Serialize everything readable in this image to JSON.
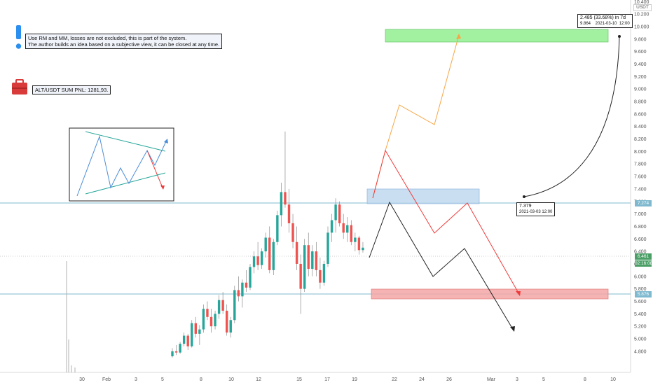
{
  "info_note": {
    "line1": "Use RM and MM, losses are not excluded, this is part of the system.",
    "line2": "The author builds an idea based on a subjective view, it can be closed at any time."
  },
  "pnl_note": "ALT/USDT SUM PNL: 1281,93.",
  "icons": {
    "info": "exclamation-icon",
    "briefcase": "briefcase-icon"
  },
  "colors": {
    "up": "#26a69a",
    "down": "#ef5350",
    "target_zone": "#90ee90",
    "entry_zone": "#bcd6ee",
    "stop_zone": "#f4a6a6",
    "bull_path": "#f7a545",
    "bear_path": "#ef3b3b",
    "neutral_path": "#222222",
    "hline": "#7fb9cf"
  },
  "price_axis": {
    "currency": "USDT",
    "ticks": [
      "10.400",
      "10.200",
      "10.000",
      "9.800",
      "9.600",
      "9.400",
      "9.200",
      "9.000",
      "8.800",
      "8.600",
      "8.400",
      "8.200",
      "8.000",
      "7.800",
      "7.600",
      "7.400",
      "7.200",
      "7.000",
      "6.800",
      "6.600",
      "6.400",
      "6.200",
      "6.000",
      "5.800",
      "5.600",
      "5.400",
      "5.200",
      "5.000",
      "4.800"
    ],
    "tag_level_high": "7.274",
    "tag_last_price": "6.461",
    "tag_countdown": "02:16:08",
    "tag_level_low": "5.876"
  },
  "time_axis": {
    "labels": [
      "30",
      "Feb",
      "3",
      "5",
      "8",
      "10",
      "12",
      "15",
      "17",
      "19",
      "22",
      "24",
      "26",
      "Mar",
      "3",
      "5",
      "8",
      "10"
    ]
  },
  "measure_callout": {
    "line1": "2.485 (33.68%) in 7d",
    "line2": "9.864    2021-03-10  12:00"
  },
  "start_callout": {
    "line1": "7.379",
    "line2": "2021-03-03 12:00"
  },
  "chart_data": {
    "type": "candlestick",
    "symbol": "ALT/USDT",
    "ylim": [
      4.7,
      10.45
    ],
    "levels": [
      7.274,
      6.461,
      5.876
    ],
    "candles_ohlc": [
      [
        4.72,
        4.85,
        4.7,
        4.8
      ],
      [
        4.8,
        4.9,
        4.74,
        4.78
      ],
      [
        4.78,
        4.95,
        4.76,
        4.92
      ],
      [
        4.92,
        5.1,
        4.88,
        5.05
      ],
      [
        5.05,
        5.08,
        4.82,
        4.88
      ],
      [
        4.88,
        5.3,
        4.86,
        5.25
      ],
      [
        5.25,
        5.35,
        5.02,
        5.08
      ],
      [
        5.08,
        5.22,
        4.9,
        5.15
      ],
      [
        5.15,
        5.55,
        5.1,
        5.48
      ],
      [
        5.48,
        5.6,
        5.3,
        5.35
      ],
      [
        5.35,
        5.48,
        5.1,
        5.2
      ],
      [
        5.2,
        5.45,
        5.15,
        5.4
      ],
      [
        5.4,
        5.7,
        5.32,
        5.62
      ],
      [
        5.62,
        5.75,
        5.4,
        5.45
      ],
      [
        5.45,
        5.55,
        5.05,
        5.1
      ],
      [
        5.1,
        5.35,
        5.02,
        5.3
      ],
      [
        5.3,
        5.85,
        5.25,
        5.78
      ],
      [
        5.78,
        6.0,
        5.6,
        5.68
      ],
      [
        5.68,
        5.95,
        5.5,
        5.9
      ],
      [
        5.9,
        6.1,
        5.75,
        5.82
      ],
      [
        5.82,
        6.2,
        5.78,
        6.15
      ],
      [
        6.15,
        6.4,
        6.05,
        6.32
      ],
      [
        6.32,
        6.55,
        6.1,
        6.18
      ],
      [
        6.18,
        6.45,
        6.12,
        6.4
      ],
      [
        6.4,
        6.7,
        6.3,
        6.62
      ],
      [
        6.62,
        6.8,
        6.05,
        6.1
      ],
      [
        6.1,
        6.6,
        6.02,
        6.55
      ],
      [
        6.55,
        7.05,
        6.5,
        6.98
      ],
      [
        6.98,
        7.5,
        6.8,
        7.35
      ],
      [
        7.35,
        8.32,
        7.1,
        7.15
      ],
      [
        7.15,
        7.4,
        6.7,
        6.85
      ],
      [
        6.85,
        7.0,
        6.45,
        6.55
      ],
      [
        6.55,
        6.8,
        6.1,
        6.2
      ],
      [
        6.2,
        6.35,
        5.4,
        5.8
      ],
      [
        5.8,
        6.6,
        5.75,
        6.5
      ],
      [
        6.5,
        6.7,
        6.0,
        6.12
      ],
      [
        6.12,
        6.5,
        6.0,
        6.4
      ],
      [
        6.4,
        6.55,
        6.0,
        6.1
      ],
      [
        6.1,
        6.3,
        5.8,
        5.9
      ],
      [
        5.9,
        6.25,
        5.85,
        6.2
      ],
      [
        6.2,
        6.8,
        6.15,
        6.7
      ],
      [
        6.7,
        7.0,
        6.55,
        6.9
      ],
      [
        6.9,
        7.25,
        6.7,
        7.15
      ],
      [
        7.15,
        7.2,
        6.8,
        6.85
      ],
      [
        6.85,
        7.0,
        6.6,
        6.7
      ],
      [
        6.7,
        6.95,
        6.55,
        6.82
      ],
      [
        6.82,
        6.9,
        6.5,
        6.55
      ],
      [
        6.55,
        6.7,
        6.4,
        6.62
      ],
      [
        6.62,
        6.65,
        6.35,
        6.42
      ],
      [
        6.42,
        6.55,
        6.38,
        6.46
      ]
    ]
  }
}
